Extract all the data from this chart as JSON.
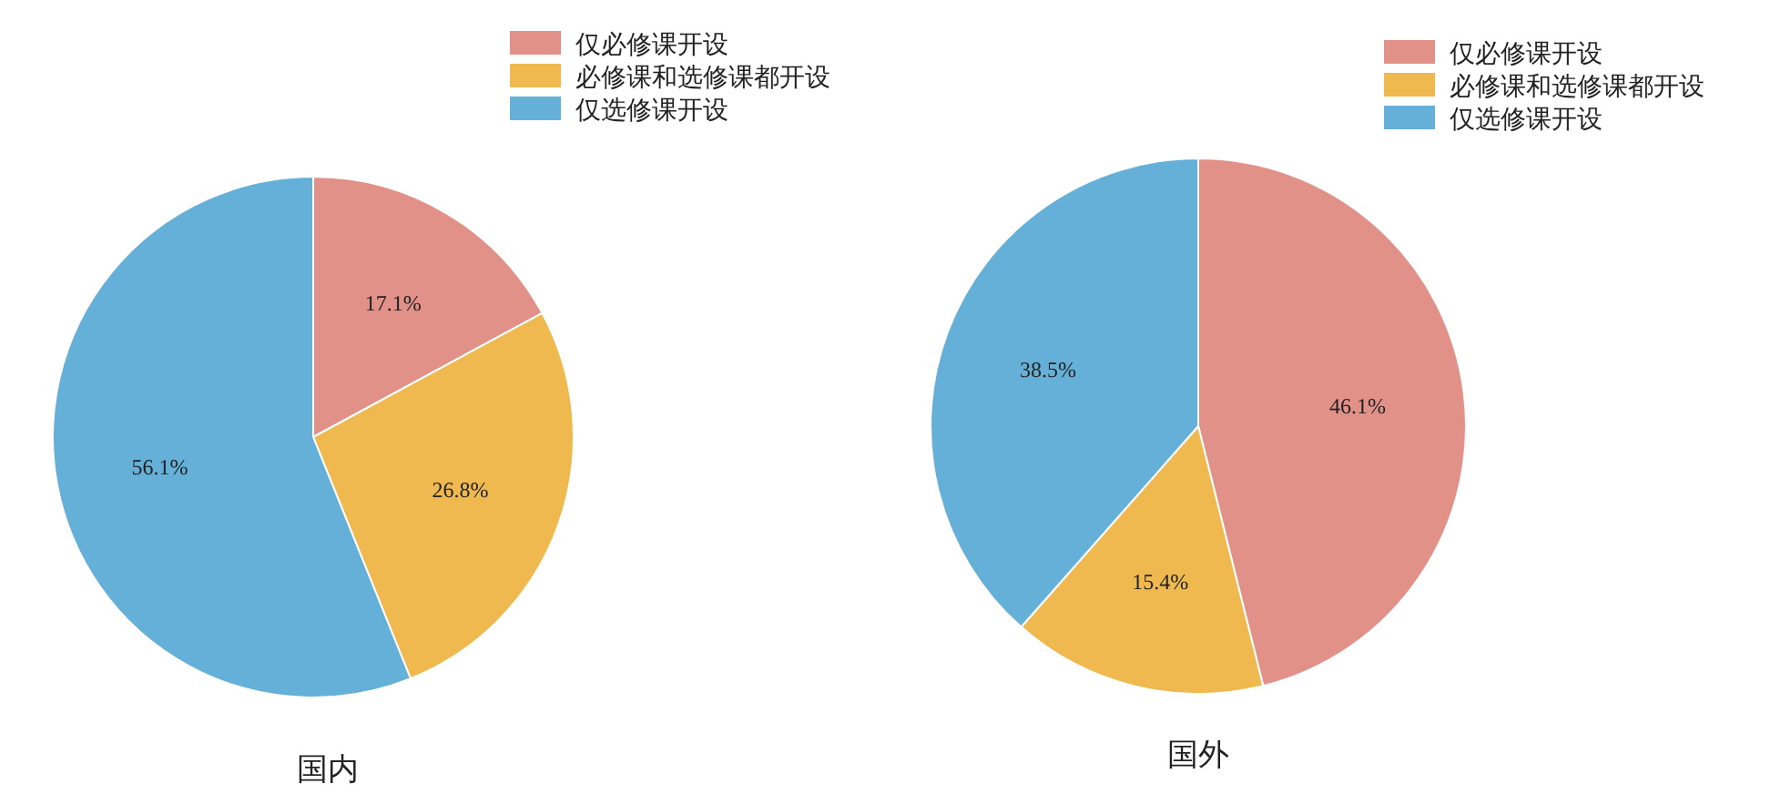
{
  "chart_data": [
    {
      "type": "pie",
      "title": "国内",
      "categories": [
        "仅必修课开设",
        "必修课和选修课都开设",
        "仅选修课开设"
      ],
      "values": [
        17.1,
        26.8,
        56.1
      ],
      "colors": [
        "#e29189",
        "#f0b94f",
        "#65b0d8"
      ],
      "value_labels": [
        "17.1%",
        "26.8%",
        "56.1%"
      ],
      "legend": "top right"
    },
    {
      "type": "pie",
      "title": "国外",
      "categories": [
        "仅必修课开设",
        "必修课和选修课都开设",
        "仅选修课开设"
      ],
      "values": [
        46.1,
        15.4,
        38.5
      ],
      "colors": [
        "#e29189",
        "#f0b94f",
        "#65b0d8"
      ],
      "value_labels": [
        "46.1%",
        "15.4%",
        "38.5%"
      ],
      "legend": "top right"
    }
  ]
}
